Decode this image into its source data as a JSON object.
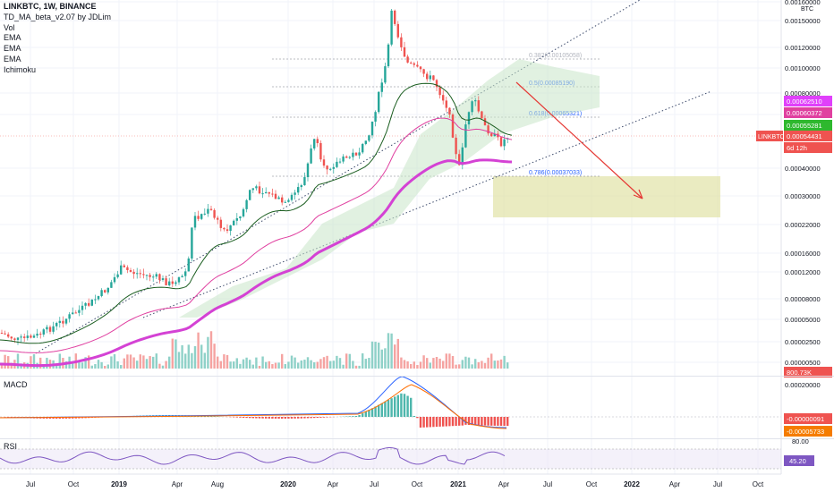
{
  "legend": {
    "title": "LINKBTC, 1W, BINANCE",
    "indicators": [
      "TD_MA_beta_v2.07 by JDLim",
      "Vol",
      "EMA",
      "EMA",
      "EMA",
      "Ichimoku"
    ]
  },
  "macd_pane": {
    "label": "MACD"
  },
  "rsi_pane": {
    "label": "RSI"
  },
  "currency": "BTC",
  "colors": {
    "up": "#26a69a",
    "down": "#ef5350",
    "ema_fast": "#e040a0",
    "ema_slow": "#d442d4",
    "fib_text": "#2962ff",
    "arrow": "#e53935",
    "target_zone": "#dfe1a0",
    "trendline": "#3c4a6b"
  },
  "chart_data": {
    "type": "line",
    "title": "LINKBTC, 1W, BINANCE",
    "ylabel": "BTC",
    "x_ticks": [
      "Jul",
      "Oct",
      "2019",
      "Apr",
      "Aug",
      "2020",
      "Apr",
      "Jul",
      "Oct",
      "2021",
      "Apr",
      "Jul",
      "Oct",
      "2022",
      "Apr",
      "Jul",
      "Oct"
    ],
    "y_ticks": [
      "0.00160000",
      "0.00150000",
      "0.00120000",
      "0.00100000",
      "0.00080000",
      "0.00060000",
      "0.00040000",
      "0.00030000",
      "0.00022000",
      "0.00016000",
      "0.00012000",
      "0.00008000",
      "0.00005000",
      "0.00002500",
      "0.00000500"
    ],
    "price_axis_tags": [
      {
        "text": "0.00062510",
        "color": "#e040fb"
      },
      {
        "text": "0.00060372",
        "color": "#e040a0"
      },
      {
        "text": "0.00055281",
        "color": "#2eb82e"
      },
      {
        "text": "LINKBTC",
        "color": "#ef5350"
      },
      {
        "text": "0.00054431",
        "color": "#ef5350"
      },
      {
        "text": "6d 12h",
        "color": "#ef5350"
      },
      {
        "text": "800.73K",
        "color": "#ef5350"
      }
    ],
    "fib_levels": [
      {
        "label": "0.382(0.00105058)"
      },
      {
        "label": "0.5(0.00085190)"
      },
      {
        "label": "0.618(0.00065321)"
      },
      {
        "label": "0.786(0.00037033)"
      }
    ],
    "series": [
      {
        "values": [
          3.5e-06,
          3.2e-06,
          4e-06,
          4.5e-06,
          6e-06,
          7.5e-06,
          8e-06,
          1e-05,
          1.4e-05,
          1.5e-05,
          1.6e-05,
          2e-05,
          2.7e-05,
          3.8e-05,
          5e-05,
          7e-05,
          0.0001,
          0.00014,
          0.0002,
          0.00026,
          0.0003,
          0.00035,
          0.00042,
          0.00056,
          0.0007,
          0.0011,
          0.0016,
          0.0012,
          0.001,
          0.0008,
          0.00065,
          0.0004,
          0.00065,
          0.00075,
          0.00055,
          0.0005443
        ]
      }
    ],
    "macd": {
      "tags": [
        {
          "text": "0.00020000"
        },
        {
          "text": "-0.00000091",
          "color": "#ef5350"
        },
        {
          "text": "-0.00005733",
          "color": "#f57c00"
        }
      ]
    },
    "rsi": {
      "value": 45.2,
      "tags": [
        {
          "text": "80.00"
        },
        {
          "text": "45.20"
        }
      ]
    }
  }
}
